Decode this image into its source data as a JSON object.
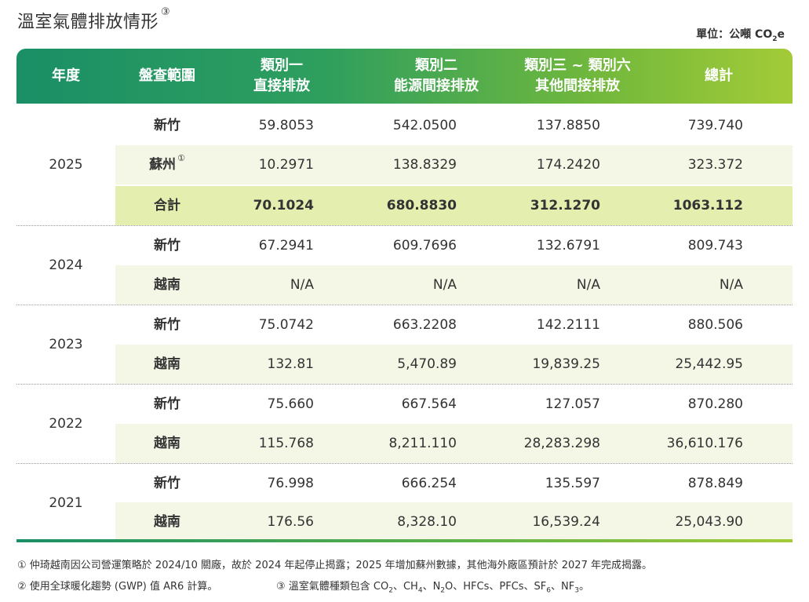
{
  "title": "溫室氣體排放情形",
  "title_mark": "③",
  "unit": {
    "prefix": "單位：公噸 CO",
    "sub": "2",
    "suffix": "e"
  },
  "header": {
    "year": "年度",
    "scope": "盤查範圍",
    "cat1": [
      "類別一",
      "直接排放"
    ],
    "cat2": [
      "類別二",
      "能源間接排放"
    ],
    "cat36": [
      "類別三 ~ 類別六",
      "其他間接排放"
    ],
    "total": "總計"
  },
  "years": [
    {
      "year": "2025",
      "rows": [
        {
          "site": "新竹",
          "mark": "",
          "c1": "59.8053",
          "c2": "542.0500",
          "c3": "137.8850",
          "c4": "739.740"
        },
        {
          "site": "蘇州",
          "mark": "①",
          "c1": "10.2971",
          "c2": "138.8329",
          "c3": "174.2420",
          "c4": "323.372"
        },
        {
          "site": "合計",
          "mark": "",
          "c1": "70.1024",
          "c2": "680.8830",
          "c3": "312.1270",
          "c4": "1063.112"
        }
      ]
    },
    {
      "year": "2024",
      "rows": [
        {
          "site": "新竹",
          "mark": "",
          "c1": "67.2941",
          "c2": "609.7696",
          "c3": "132.6791",
          "c4": "809.743"
        },
        {
          "site": "越南",
          "mark": "",
          "c1": "N/A",
          "c2": "N/A",
          "c3": "N/A",
          "c4": "N/A"
        }
      ]
    },
    {
      "year": "2023",
      "rows": [
        {
          "site": "新竹",
          "mark": "",
          "c1": "75.0742",
          "c2": "663.2208",
          "c3": "142.2111",
          "c4": "880.506"
        },
        {
          "site": "越南",
          "mark": "",
          "c1": "132.81",
          "c2": "5,470.89",
          "c3": "19,839.25",
          "c4": "25,442.95"
        }
      ]
    },
    {
      "year": "2022",
      "rows": [
        {
          "site": "新竹",
          "mark": "",
          "c1": "75.660",
          "c2": "667.564",
          "c3": "127.057",
          "c4": "870.280"
        },
        {
          "site": "越南",
          "mark": "",
          "c1": "115.768",
          "c2": "8,211.110",
          "c3": "28,283.298",
          "c4": "36,610.176"
        }
      ]
    },
    {
      "year": "2021",
      "rows": [
        {
          "site": "新竹",
          "mark": "",
          "c1": "76.998",
          "c2": "666.254",
          "c3": "135.597",
          "c4": "878.849"
        },
        {
          "site": "越南",
          "mark": "",
          "c1": "176.56",
          "c2": "8,328.10",
          "c3": "16,539.24",
          "c4": "25,043.90"
        }
      ]
    }
  ],
  "notes": {
    "n1": "①  仲琦越南因公司營運策略於 2024/10 關廠，故於 2024 年起停止揭露；2025 年增加蘇州數據，其他海外廠區預計於 2027 年完成揭露。",
    "n2": "②  使用全球暖化趨勢 (GWP) 值 AR6 計算。",
    "n3": {
      "parts": [
        "③  溫室氣體種類包含 CO",
        "2",
        "、CH",
        "4",
        "、N",
        "2",
        "O、HFCs、PFCs、SF",
        "6",
        "、NF",
        "3",
        "。"
      ]
    }
  }
}
